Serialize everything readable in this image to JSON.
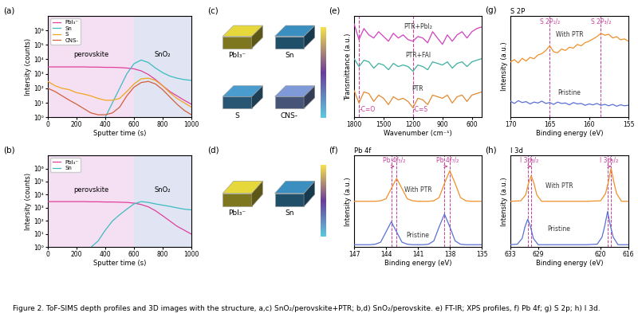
{
  "caption": "Figure 2. ToF-SIMS depth profiles and 3D images with the structure, a,c) SnO₂/perovskite+PTR; b,d) SnO₂/perovskite. e) FT-IR; XPS profiles, f) Pb 4f; g) S 2p; h) I 3d.",
  "chart_data": [
    {
      "type": "line",
      "panel_label": "(a)",
      "log": "y",
      "legend": "upper left",
      "x_label": "Sputter time (s)",
      "y_label": "Intersity (counts)",
      "xlim": [
        0,
        1000
      ],
      "xticks": [
        0,
        200,
        400,
        600,
        800,
        1000
      ],
      "ylim": [
        1,
        10000000
      ],
      "yticks": [
        {
          "value": 1,
          "label": "10⁰"
        },
        {
          "value": 10,
          "label": "10¹"
        },
        {
          "value": 100,
          "label": "10²"
        },
        {
          "value": 1000,
          "label": "10³"
        },
        {
          "value": 10000,
          "label": "10⁴"
        },
        {
          "value": 100000,
          "label": "10⁵"
        },
        {
          "value": 1000000,
          "label": "10⁶"
        }
      ],
      "regions": [
        {
          "label": "perovskite",
          "start": 0,
          "end": 600,
          "color": "#f3d9f0"
        },
        {
          "label": "SnO₂",
          "start": 600,
          "end": 1000,
          "color": "#d9def0"
        }
      ],
      "x": [
        0,
        50,
        100,
        150,
        200,
        250,
        300,
        350,
        400,
        450,
        500,
        550,
        600,
        650,
        700,
        750,
        800,
        850,
        900,
        950,
        1000
      ],
      "series": [
        {
          "name": "PbI₃⁻",
          "color": "#e0409c",
          "values": [
            3000,
            3000,
            3000,
            3000,
            3000,
            3000,
            2900,
            2900,
            2800,
            2800,
            2700,
            2500,
            2200,
            1600,
            900,
            400,
            150,
            60,
            30,
            15,
            8
          ]
        },
        {
          "name": "Sn",
          "color": "#3cbcc0",
          "values": [
            null,
            null,
            null,
            null,
            null,
            null,
            null,
            null,
            1,
            10,
            100,
            1000,
            5000,
            9000,
            6000,
            2500,
            1200,
            700,
            500,
            400,
            350
          ]
        },
        {
          "name": "S",
          "color": "#f2a51e",
          "values": [
            300,
            150,
            100,
            80,
            50,
            40,
            30,
            20,
            15,
            15,
            20,
            60,
            200,
            450,
            500,
            350,
            150,
            50,
            20,
            10,
            5
          ]
        },
        {
          "name": "CNS-",
          "color": "#d2603a",
          "values": [
            100,
            60,
            30,
            15,
            8,
            4,
            2,
            1.5,
            1.5,
            2,
            5,
            30,
            120,
            250,
            300,
            200,
            80,
            25,
            8,
            3,
            1.5
          ]
        }
      ]
    },
    {
      "type": "line",
      "panel_label": "(b)",
      "log": "y",
      "legend": "upper left",
      "x_label": "Sputter time (s)",
      "y_label": "Intersity (counts)",
      "xlim": [
        0,
        1000
      ],
      "xticks": [
        0,
        200,
        400,
        600,
        800,
        1000
      ],
      "ylim": [
        1,
        10000000
      ],
      "yticks": [
        {
          "value": 1,
          "label": "10⁰"
        },
        {
          "value": 10,
          "label": "10¹"
        },
        {
          "value": 100,
          "label": "10²"
        },
        {
          "value": 1000,
          "label": "10³"
        },
        {
          "value": 10000,
          "label": "10⁴"
        },
        {
          "value": 100000,
          "label": "10⁵"
        },
        {
          "value": 1000000,
          "label": "10⁶"
        }
      ],
      "regions": [
        {
          "label": "perovskite",
          "start": 0,
          "end": 600,
          "color": "#f3d9f0"
        },
        {
          "label": "SnO₂",
          "start": 600,
          "end": 1000,
          "color": "#d9def0"
        }
      ],
      "x": [
        0,
        50,
        100,
        150,
        200,
        250,
        300,
        350,
        400,
        450,
        500,
        550,
        600,
        650,
        700,
        750,
        800,
        850,
        900,
        950,
        1000
      ],
      "series": [
        {
          "name": "PbI₃⁻",
          "color": "#e0409c",
          "values": [
            3000,
            3000,
            3000,
            3000,
            3000,
            3000,
            2900,
            2900,
            2800,
            2800,
            2700,
            2600,
            2300,
            1800,
            1200,
            600,
            250,
            100,
            40,
            20,
            10
          ]
        },
        {
          "name": "Sn",
          "color": "#3cbcc0",
          "values": [
            null,
            null,
            null,
            null,
            null,
            null,
            1,
            3,
            20,
            100,
            300,
            800,
            2000,
            3000,
            2600,
            2000,
            1600,
            1300,
            1000,
            800,
            700
          ]
        }
      ]
    },
    {
      "type": "line",
      "panel_label": "(e)",
      "tick_labels": "x",
      "x_label": "Wavenumber (cm⁻¹)",
      "y_label": "Transmittance (a.u.)",
      "xlim": [
        1800,
        500
      ],
      "xticks": [
        1800,
        1500,
        1200,
        900,
        600
      ],
      "ylim": [
        0,
        3.2
      ],
      "yticks": [],
      "annotations": [
        {
          "text": "-C=O",
          "x": 1750
        },
        {
          "text": "-C=S",
          "x": 1200
        }
      ],
      "x": [
        1800,
        1750,
        1700,
        1650,
        1600,
        1550,
        1500,
        1450,
        1400,
        1350,
        1300,
        1250,
        1200,
        1150,
        1100,
        1050,
        1000,
        950,
        900,
        850,
        800,
        750,
        700,
        650,
        600,
        550,
        500
      ],
      "series": [
        {
          "name": "PTR+PbI₂",
          "color": "#d040c0",
          "values": [
            2.95,
            2.45,
            2.8,
            2.6,
            2.5,
            2.7,
            2.55,
            2.4,
            2.65,
            2.5,
            2.6,
            2.45,
            2.4,
            2.55,
            2.5,
            2.35,
            2.7,
            2.5,
            2.3,
            2.6,
            2.4,
            2.6,
            2.7,
            2.5,
            2.7,
            2.8,
            2.85
          ]
        },
        {
          "name": "PTR+FAI",
          "color": "#3fb0a0",
          "values": [
            1.85,
            1.6,
            1.8,
            1.75,
            1.55,
            1.7,
            1.65,
            1.5,
            1.7,
            1.6,
            1.65,
            1.6,
            1.45,
            1.65,
            1.6,
            1.5,
            1.75,
            1.7,
            1.65,
            1.75,
            1.55,
            1.7,
            1.75,
            1.6,
            1.75,
            1.8,
            1.85
          ]
        },
        {
          "name": "PTR",
          "color": "#e08a30",
          "values": [
            0.85,
            0.45,
            0.8,
            0.75,
            0.5,
            0.7,
            0.6,
            0.4,
            0.65,
            0.55,
            0.6,
            0.5,
            0.3,
            0.6,
            0.55,
            0.4,
            0.7,
            0.65,
            0.6,
            0.7,
            0.45,
            0.65,
            0.7,
            0.5,
            0.7,
            0.75,
            0.8
          ]
        }
      ]
    },
    {
      "type": "line",
      "panel_label": "(f)",
      "title": "Pb 4f",
      "tick_labels": "x",
      "x_label": "Binding energy (eV)",
      "y_label": "Intensity (a.u.)",
      "xlim": [
        147,
        135
      ],
      "xticks": [
        147,
        144,
        141,
        138,
        135
      ],
      "ylim": [
        0,
        3.6
      ],
      "yticks": [],
      "peaks": [
        {
          "label": "Pb 4f₅/₂",
          "from": 143.5,
          "to": 143.0
        },
        {
          "label": "Pb 4f₇/₂",
          "from": 138.5,
          "to": 138.0
        }
      ],
      "x": [
        147,
        146.5,
        146,
        145.5,
        145,
        144.5,
        144,
        143.5,
        143,
        142.5,
        142,
        141.5,
        141,
        140.5,
        140,
        139.5,
        139,
        138.5,
        138,
        137.5,
        137,
        136.5,
        136,
        135.5,
        135
      ],
      "series": [
        {
          "name": "With PTR",
          "color": "#f0902a",
          "values": [
            1.8,
            1.8,
            1.8,
            1.8,
            1.8,
            1.82,
            1.9,
            2.3,
            2.7,
            2.3,
            1.9,
            1.82,
            1.8,
            1.8,
            1.8,
            1.82,
            1.95,
            2.5,
            3.0,
            2.5,
            1.95,
            1.82,
            1.8,
            1.8,
            1.8
          ]
        },
        {
          "name": "Pristine",
          "color": "#5b6fd6",
          "values": [
            0.1,
            0.1,
            0.1,
            0.1,
            0.12,
            0.2,
            0.6,
            1.0,
            0.6,
            0.2,
            0.12,
            0.1,
            0.1,
            0.1,
            0.12,
            0.25,
            0.8,
            1.3,
            0.8,
            0.25,
            0.12,
            0.1,
            0.1,
            0.1,
            0.1
          ]
        }
      ]
    },
    {
      "type": "line",
      "panel_label": "(g)",
      "title": "S 2P",
      "tick_labels": "x",
      "x_label": "Binding energy (eV)",
      "y_label": "Intensity (a.u.)",
      "xlim": [
        170,
        155
      ],
      "xticks": [
        170,
        165,
        160,
        155
      ],
      "ylim": [
        0,
        2.2
      ],
      "yticks": [],
      "peaks": [
        {
          "label": "S 2P₁/₂",
          "x": 165.0
        },
        {
          "label": "S 2P₃/₂",
          "x": 158.5
        }
      ],
      "x": [
        170,
        169.5,
        169,
        168.5,
        168,
        167.5,
        167,
        166.5,
        166,
        165.5,
        165,
        164.5,
        164,
        163.5,
        163,
        162.5,
        162,
        161.5,
        161,
        160.5,
        160,
        159.5,
        159,
        158.5,
        158,
        157.5,
        157,
        156.5,
        156,
        155.5,
        155
      ],
      "series": [
        {
          "name": "With PTR",
          "color": "#f0902a",
          "values": [
            1.2,
            1.25,
            1.18,
            1.28,
            1.22,
            1.3,
            1.27,
            1.35,
            1.38,
            1.45,
            1.55,
            1.42,
            1.4,
            1.48,
            1.45,
            1.52,
            1.5,
            1.58,
            1.55,
            1.62,
            1.65,
            1.7,
            1.75,
            1.82,
            1.78,
            1.8,
            1.72,
            1.75,
            1.68,
            1.7,
            1.65
          ]
        },
        {
          "name": "Pristine",
          "color": "#5b6fd6",
          "values": [
            0.35,
            0.3,
            0.36,
            0.32,
            0.34,
            0.29,
            0.33,
            0.31,
            0.35,
            0.3,
            0.32,
            0.28,
            0.33,
            0.3,
            0.31,
            0.27,
            0.32,
            0.29,
            0.3,
            0.26,
            0.29,
            0.27,
            0.3,
            0.26,
            0.28,
            0.25,
            0.28,
            0.24,
            0.27,
            0.25,
            0.26
          ]
        }
      ]
    },
    {
      "type": "line",
      "panel_label": "(h)",
      "title": "I 3d",
      "tick_labels": "x",
      "x_label": "Binding energy (eV)",
      "y_label": "Intensity (a.u.)",
      "xlim": [
        633,
        616
      ],
      "xticks": [
        633,
        629,
        620,
        616
      ],
      "ylim": [
        0,
        3.6
      ],
      "yticks": [],
      "peaks": [
        {
          "label": "I 3d₃/₂",
          "from": 630.5,
          "to": 630.0
        },
        {
          "label": "I 3d₅/₂",
          "from": 619.0,
          "to": 618.5
        }
      ],
      "series": [
        {
          "name": "With PTR",
          "color": "#f0902a",
          "x": [
            616,
            617,
            617.7,
            618.1,
            618.5,
            618.9,
            619.3,
            620,
            622,
            626,
            628.5,
            629.2,
            629.6,
            630.0,
            630.4,
            630.8,
            631.5,
            633
          ],
          "values": [
            1.8,
            1.8,
            2.1,
            2.55,
            3.1,
            2.55,
            2.1,
            1.82,
            1.8,
            1.8,
            1.8,
            2.05,
            2.5,
            2.8,
            2.5,
            2.05,
            1.82,
            1.8
          ]
        },
        {
          "name": "Pristine",
          "color": "#5b6fd6",
          "x": [
            616,
            617.5,
            618.2,
            618.6,
            619.0,
            619.4,
            619.8,
            620.5,
            622,
            626,
            629,
            629.7,
            630.1,
            630.5,
            630.9,
            631.3,
            632,
            633
          ],
          "values": [
            0.1,
            0.1,
            0.4,
            0.85,
            1.4,
            0.85,
            0.4,
            0.12,
            0.1,
            0.1,
            0.1,
            0.35,
            0.8,
            1.1,
            0.8,
            0.35,
            0.12,
            0.1
          ]
        }
      ]
    }
  ],
  "images": [
    {
      "panel_label": "(c)",
      "items": [
        {
          "label": "PbI₃⁻",
          "color": "#e6d83a"
        },
        {
          "label": "Sn",
          "color": "#3a8fc0"
        },
        {
          "label": "S",
          "color": "#4a9ccf"
        },
        {
          "label": "CNS-",
          "color": "#7f9ad8"
        }
      ]
    },
    {
      "panel_label": "(d)",
      "items": [
        {
          "label": "PbI₃⁻",
          "color": "#e6d83a"
        },
        {
          "label": "Sn",
          "color": "#3a8fc0"
        }
      ]
    }
  ]
}
